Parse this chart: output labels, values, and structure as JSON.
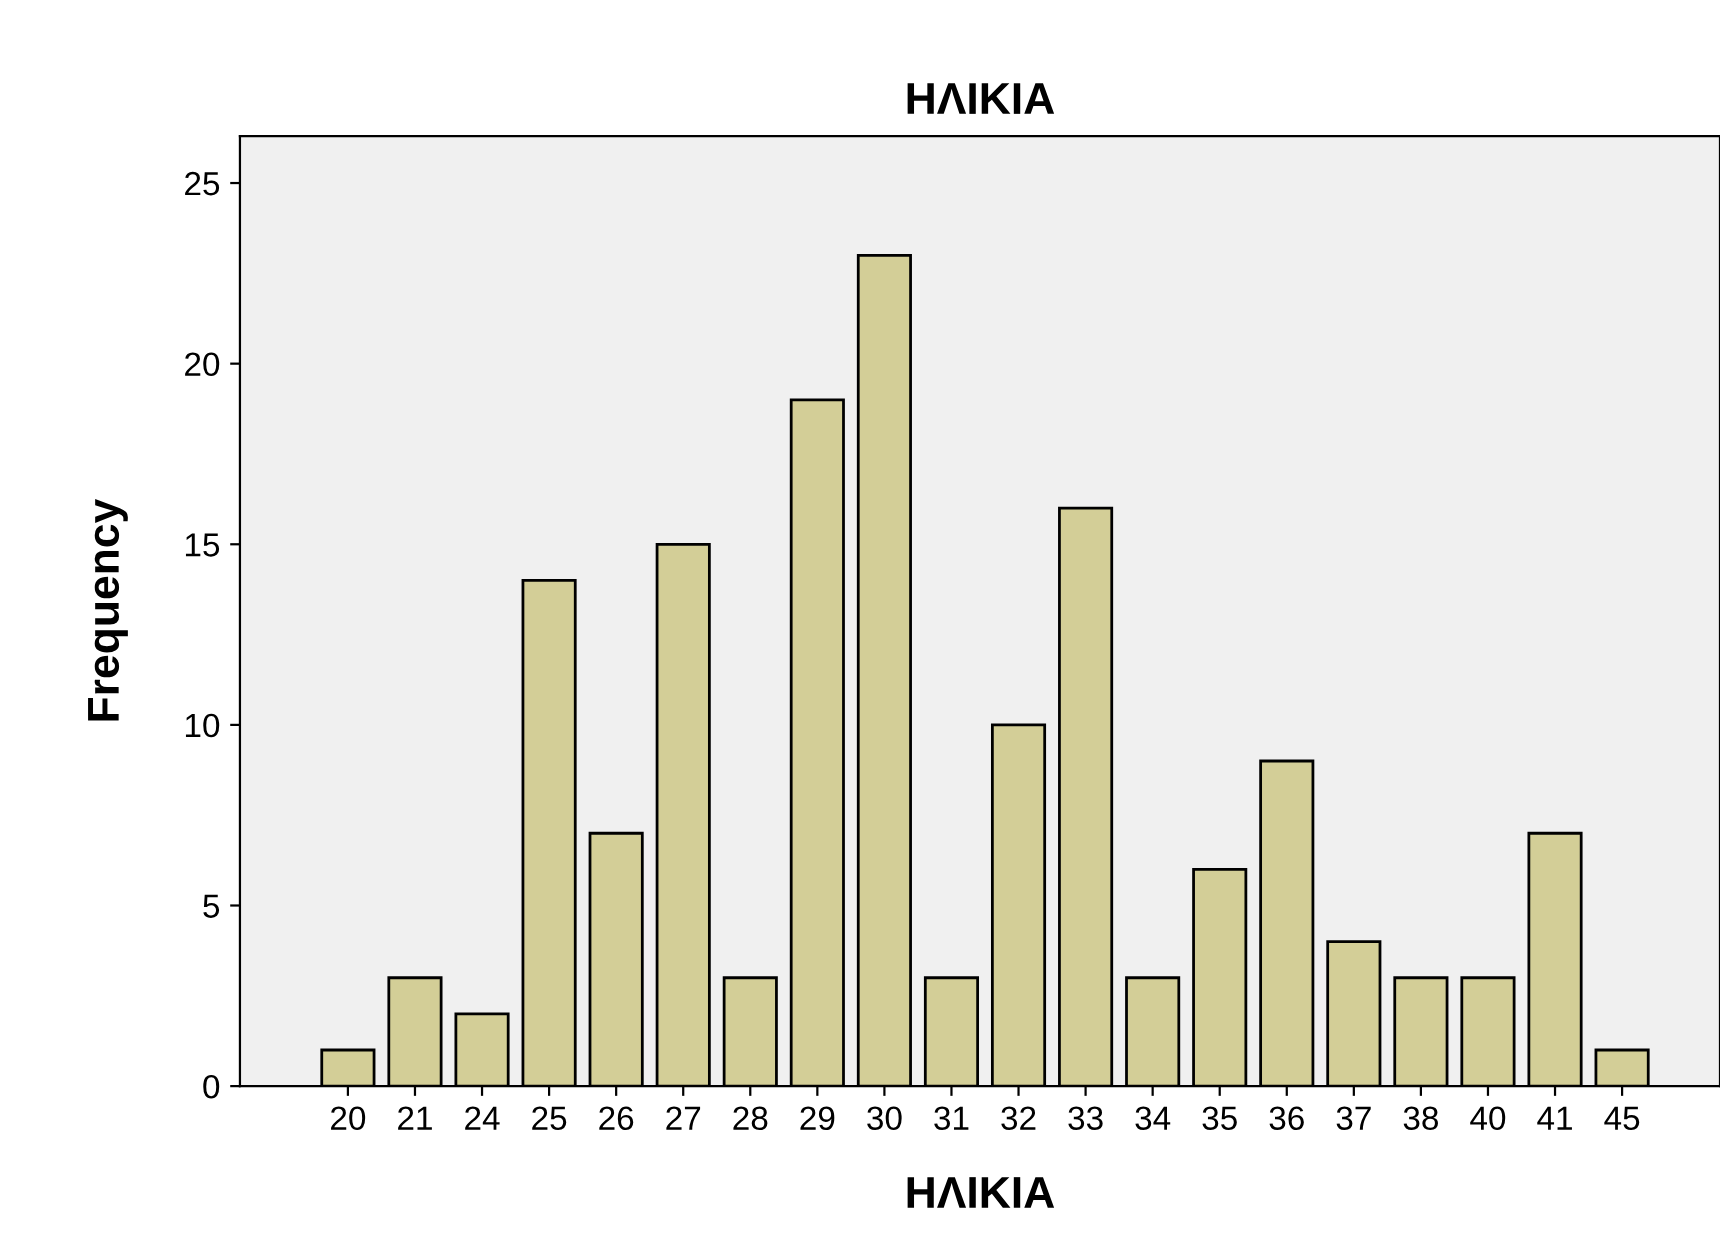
{
  "chart_data": {
    "type": "bar",
    "title": "ΗΛΙΚΙΑ",
    "xlabel": "ΗΛΙΚΙΑ",
    "ylabel": "Frequency",
    "categories": [
      "20",
      "21",
      "24",
      "25",
      "26",
      "27",
      "28",
      "29",
      "30",
      "31",
      "32",
      "33",
      "34",
      "35",
      "36",
      "37",
      "38",
      "40",
      "41",
      "45"
    ],
    "values": [
      1,
      3,
      2,
      14,
      7,
      15,
      3,
      19,
      23,
      3,
      10,
      16,
      3,
      6,
      9,
      4,
      3,
      3,
      7,
      1
    ],
    "color": "#d3ce97",
    "ylim": [
      0,
      26.3
    ],
    "yticks": [
      0,
      5,
      10,
      15,
      20,
      25
    ],
    "grid": false,
    "legend": false
  }
}
